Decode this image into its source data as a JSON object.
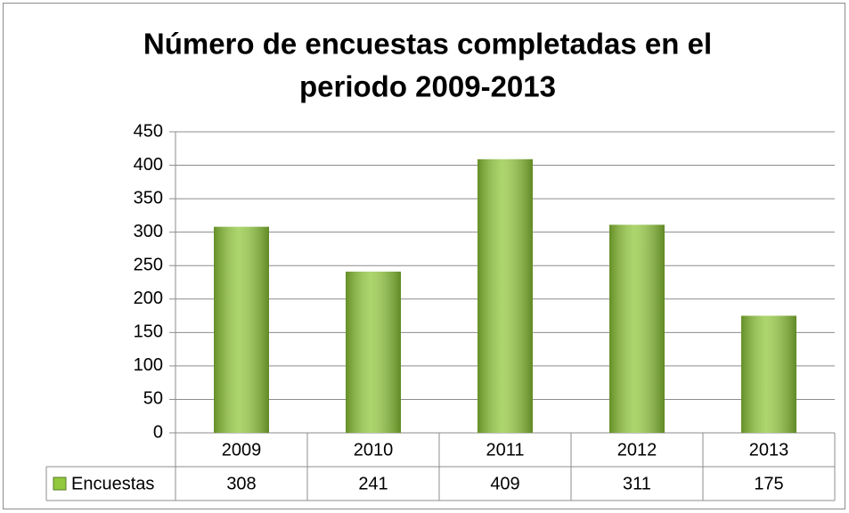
{
  "chart_data": {
    "type": "bar",
    "title": [
      "Número de encuestas completadas en el",
      "periodo 2009-2013"
    ],
    "categories": [
      "2009",
      "2010",
      "2011",
      "2012",
      "2013"
    ],
    "series": [
      {
        "name": "Encuestas",
        "color": "#92c83e",
        "values": [
          308,
          241,
          409,
          311,
          175
        ]
      }
    ],
    "ylim": [
      0,
      450
    ],
    "yticks": [
      0,
      50,
      100,
      150,
      200,
      250,
      300,
      350,
      400,
      450
    ],
    "grid": true,
    "data_table": true
  }
}
